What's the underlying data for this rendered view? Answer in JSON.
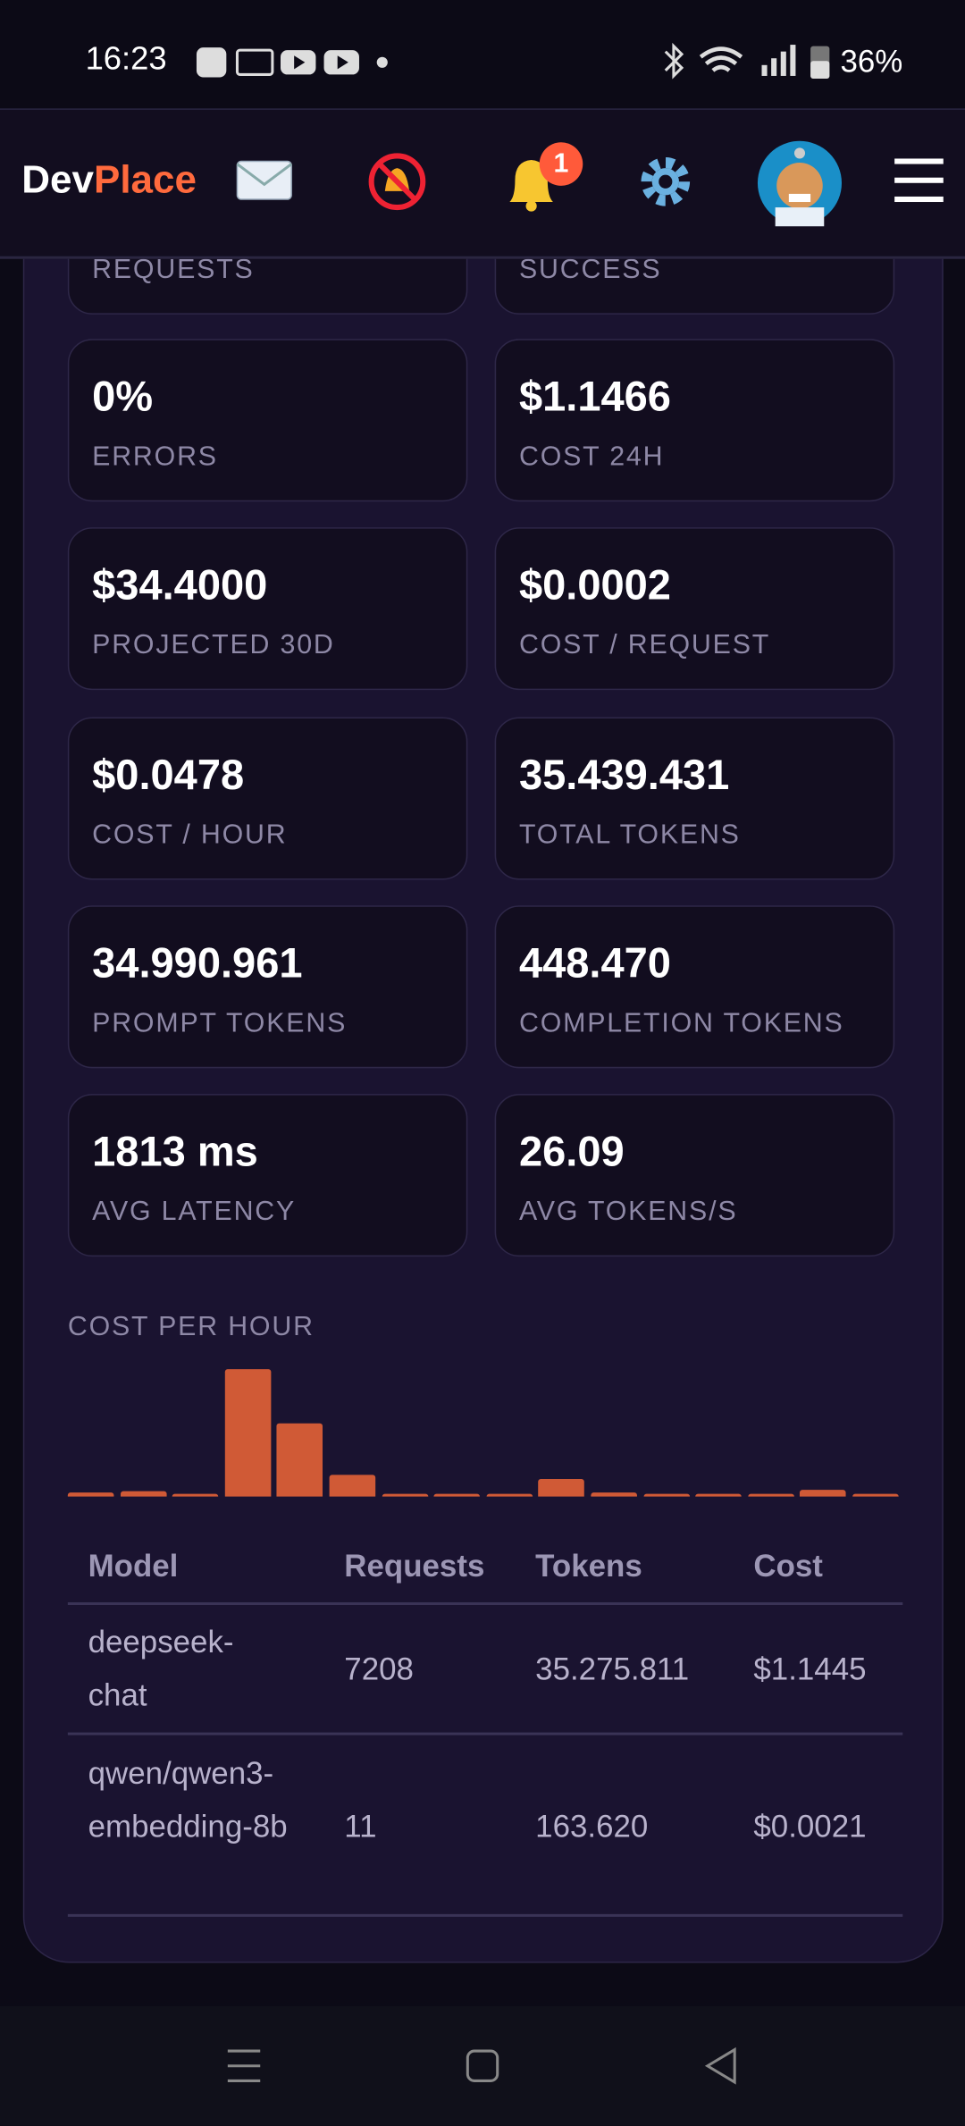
{
  "status_bar": {
    "time": "16:23",
    "battery": "36%"
  },
  "header": {
    "brand_dev": "Dev",
    "brand_place": "Place",
    "notification_count": "1"
  },
  "partial_labels": [
    "REQUESTS",
    "SUCCESS"
  ],
  "stats": [
    {
      "value": "0%",
      "label": "ERRORS"
    },
    {
      "value": "$1.1466",
      "label": "COST 24H"
    },
    {
      "value": "$34.4000",
      "label": "PROJECTED 30D"
    },
    {
      "value": "$0.0002",
      "label": "COST / REQUEST"
    },
    {
      "value": "$0.0478",
      "label": "COST / HOUR"
    },
    {
      "value": "35.439.431",
      "label": "TOTAL TOKENS"
    },
    {
      "value": "34.990.961",
      "label": "PROMPT TOKENS"
    },
    {
      "value": "448.470",
      "label": "COMPLETION TOKENS"
    },
    {
      "value": "1813 ms",
      "label": "AVG LATENCY"
    },
    {
      "value": "26.09",
      "label": "AVG TOKENS/S"
    }
  ],
  "chart_data": {
    "type": "bar",
    "title": "COST PER HOUR",
    "color": "#d05a36",
    "values": [
      0.017,
      0.023,
      0.006,
      0.536,
      0.308,
      0.091,
      0.011,
      0.006,
      0.006,
      0.074,
      0.017,
      0.006,
      0.006,
      0.006,
      0.029,
      0.006
    ]
  },
  "table": {
    "columns": [
      "Model",
      "Requests",
      "Tokens",
      "Cost"
    ],
    "rows": [
      [
        "deepseek-chat",
        "7208",
        "35.275.811",
        "$1.1445"
      ],
      [
        "qwen/qwen3-embedding-8b",
        "11",
        "163.620",
        "$0.0021"
      ]
    ]
  }
}
